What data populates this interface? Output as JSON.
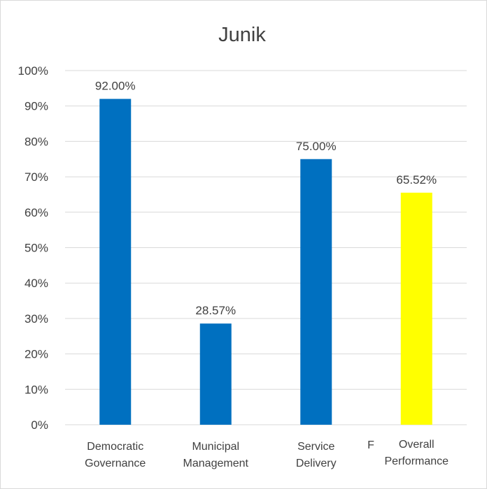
{
  "chart_data": {
    "type": "bar",
    "title": "Junik",
    "categories": [
      [
        "Democratic",
        "Governance"
      ],
      [
        "Municipal",
        "Management"
      ],
      [
        "Service",
        "Delivery"
      ],
      [
        "Overall",
        "Performance"
      ]
    ],
    "values": [
      92.0,
      28.57,
      75.0,
      65.52
    ],
    "data_labels": [
      "92.00%",
      "28.57%",
      "75.00%",
      "65.52%"
    ],
    "colors": [
      "#0070c0",
      "#0070c0",
      "#0070c0",
      "#ffff00"
    ],
    "ylim": [
      0,
      100
    ],
    "y_ticks": [
      0,
      10,
      20,
      30,
      40,
      50,
      60,
      70,
      80,
      90,
      100
    ],
    "y_tick_labels": [
      "0%",
      "10%",
      "20%",
      "30%",
      "40%",
      "50%",
      "60%",
      "70%",
      "80%",
      "90%",
      "100%"
    ],
    "stray_label": "F",
    "xlabel": "",
    "ylabel": "",
    "grid": true,
    "legend": "none"
  }
}
